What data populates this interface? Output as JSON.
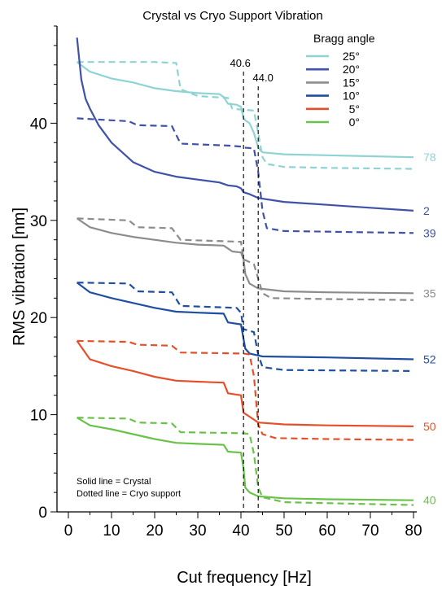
{
  "chart_data": {
    "type": "line",
    "title": "Crystal vs Cryo Support Vibration",
    "xlabel": "Cut frequency [Hz]",
    "ylabel": "RMS vibration [nm]",
    "xlim": [
      0,
      80
    ],
    "ylim": [
      0,
      50
    ],
    "x_ticks": [
      0,
      10,
      20,
      30,
      40,
      50,
      60,
      70,
      80
    ],
    "y_ticks": [
      0,
      10,
      20,
      30,
      40
    ],
    "grid": false,
    "legend": {
      "title": "Bragg angle",
      "placement": "top-right",
      "entries": [
        "25°",
        "20°",
        "15°",
        "10°",
        "5°",
        "0°"
      ]
    },
    "annotations": {
      "notes": [
        "Solid line = Crystal",
        "Dotted line = Cryo support"
      ],
      "vertical_lines": [
        {
          "x": 40.6,
          "label": "40.6"
        },
        {
          "x": 44.0,
          "label": "44.0"
        }
      ]
    },
    "series": [
      {
        "name": "25°",
        "color": "#8fd3d3",
        "style": "solid",
        "end_label": "78",
        "points": [
          [
            2,
            46.3
          ],
          [
            5,
            45.3
          ],
          [
            10,
            44.6
          ],
          [
            15,
            44.2
          ],
          [
            20,
            43.6
          ],
          [
            25,
            43.3
          ],
          [
            30,
            43.1
          ],
          [
            35,
            43.0
          ],
          [
            36,
            42.7
          ],
          [
            37,
            42.0
          ],
          [
            39,
            41.9
          ],
          [
            40,
            41.7
          ],
          [
            40.6,
            40.5
          ],
          [
            41,
            40.3
          ],
          [
            42,
            40.0
          ],
          [
            43,
            39.0
          ],
          [
            44,
            37.5
          ],
          [
            45,
            37.0
          ],
          [
            50,
            36.8
          ],
          [
            60,
            36.7
          ],
          [
            70,
            36.6
          ],
          [
            80,
            36.5
          ]
        ]
      },
      {
        "name": "25°",
        "color": "#8fd3d3",
        "style": "dashed",
        "end_label": "",
        "points": [
          [
            2,
            46.3
          ],
          [
            20,
            46.3
          ],
          [
            25,
            46.2
          ],
          [
            26,
            43.5
          ],
          [
            30,
            42.8
          ],
          [
            37,
            42.6
          ],
          [
            38,
            41.5
          ],
          [
            40,
            41.4
          ],
          [
            40.6,
            41.4
          ],
          [
            43,
            41.3
          ],
          [
            44,
            39.0
          ],
          [
            45,
            36.5
          ],
          [
            46,
            35.8
          ],
          [
            50,
            35.5
          ],
          [
            60,
            35.4
          ],
          [
            80,
            35.3
          ]
        ]
      },
      {
        "name": "20°",
        "color": "#3f51a8",
        "style": "solid",
        "end_label": "2",
        "points": [
          [
            2,
            48.8
          ],
          [
            3,
            44.5
          ],
          [
            4,
            42.5
          ],
          [
            5,
            41.5
          ],
          [
            7,
            39.8
          ],
          [
            10,
            38.0
          ],
          [
            15,
            36.0
          ],
          [
            20,
            35.0
          ],
          [
            25,
            34.5
          ],
          [
            30,
            34.2
          ],
          [
            35,
            33.9
          ],
          [
            37,
            33.6
          ],
          [
            39,
            33.5
          ],
          [
            40,
            33.3
          ],
          [
            40.6,
            32.9
          ],
          [
            42,
            32.7
          ],
          [
            44,
            32.3
          ],
          [
            50,
            31.9
          ],
          [
            60,
            31.6
          ],
          [
            70,
            31.3
          ],
          [
            80,
            31.0
          ]
        ]
      },
      {
        "name": "20°",
        "color": "#3f51a8",
        "style": "dashed",
        "end_label": "39",
        "points": [
          [
            2,
            40.5
          ],
          [
            10,
            40.3
          ],
          [
            14,
            40.2
          ],
          [
            16,
            39.8
          ],
          [
            24,
            39.7
          ],
          [
            26,
            37.9
          ],
          [
            37,
            37.7
          ],
          [
            40,
            37.6
          ],
          [
            40.6,
            37.5
          ],
          [
            43,
            37.4
          ],
          [
            44,
            35.0
          ],
          [
            45,
            31.0
          ],
          [
            46,
            29.2
          ],
          [
            50,
            28.9
          ],
          [
            80,
            28.7
          ]
        ]
      },
      {
        "name": "15°",
        "color": "#8c8c8c",
        "style": "solid",
        "end_label": "35",
        "points": [
          [
            2,
            30.2
          ],
          [
            5,
            29.3
          ],
          [
            10,
            28.7
          ],
          [
            15,
            28.3
          ],
          [
            20,
            28.0
          ],
          [
            25,
            27.7
          ],
          [
            30,
            27.5
          ],
          [
            36,
            27.4
          ],
          [
            38,
            26.8
          ],
          [
            40,
            26.7
          ],
          [
            40.6,
            26.0
          ],
          [
            41,
            24.5
          ],
          [
            42,
            23.5
          ],
          [
            44,
            23.0
          ],
          [
            50,
            22.7
          ],
          [
            60,
            22.6
          ],
          [
            80,
            22.5
          ]
        ]
      },
      {
        "name": "15°",
        "color": "#8c8c8c",
        "style": "dashed",
        "end_label": "",
        "points": [
          [
            2,
            30.2
          ],
          [
            14,
            30.0
          ],
          [
            16,
            29.3
          ],
          [
            24,
            29.2
          ],
          [
            26,
            28.0
          ],
          [
            40,
            27.8
          ],
          [
            40.6,
            26.0
          ],
          [
            43,
            25.5
          ],
          [
            44,
            24.0
          ],
          [
            45,
            22.5
          ],
          [
            47,
            22.0
          ],
          [
            60,
            21.9
          ],
          [
            80,
            21.8
          ]
        ]
      },
      {
        "name": "10°",
        "color": "#1e4fa0",
        "style": "solid",
        "end_label": "52",
        "points": [
          [
            2,
            23.6
          ],
          [
            5,
            22.6
          ],
          [
            10,
            22.0
          ],
          [
            15,
            21.5
          ],
          [
            20,
            21.0
          ],
          [
            25,
            20.6
          ],
          [
            30,
            20.5
          ],
          [
            36,
            20.4
          ],
          [
            37,
            19.5
          ],
          [
            40,
            19.3
          ],
          [
            40.6,
            17.8
          ],
          [
            41,
            16.8
          ],
          [
            42,
            16.3
          ],
          [
            45,
            16.0
          ],
          [
            60,
            15.9
          ],
          [
            80,
            15.7
          ]
        ]
      },
      {
        "name": "10°",
        "color": "#1e4fa0",
        "style": "dashed",
        "end_label": "",
        "points": [
          [
            2,
            23.6
          ],
          [
            14,
            23.5
          ],
          [
            16,
            22.7
          ],
          [
            24,
            22.6
          ],
          [
            26,
            21.2
          ],
          [
            39,
            21.0
          ],
          [
            40,
            20.5
          ],
          [
            40.6,
            18.8
          ],
          [
            43,
            18.5
          ],
          [
            44,
            16.2
          ],
          [
            45,
            14.9
          ],
          [
            50,
            14.6
          ],
          [
            80,
            14.5
          ]
        ]
      },
      {
        "name": "5°",
        "color": "#e5502a",
        "style": "solid",
        "end_label": "50",
        "points": [
          [
            2,
            17.6
          ],
          [
            5,
            15.7
          ],
          [
            10,
            15.0
          ],
          [
            15,
            14.5
          ],
          [
            20,
            13.9
          ],
          [
            25,
            13.5
          ],
          [
            30,
            13.4
          ],
          [
            36,
            13.3
          ],
          [
            37,
            12.2
          ],
          [
            40,
            12.0
          ],
          [
            40.6,
            10.2
          ],
          [
            42,
            9.8
          ],
          [
            44,
            9.2
          ],
          [
            50,
            9.0
          ],
          [
            60,
            8.9
          ],
          [
            80,
            8.8
          ]
        ]
      },
      {
        "name": "5°",
        "color": "#e5502a",
        "style": "dashed",
        "end_label": "",
        "points": [
          [
            2,
            17.6
          ],
          [
            14,
            17.5
          ],
          [
            16,
            17.2
          ],
          [
            24,
            17.1
          ],
          [
            26,
            16.4
          ],
          [
            40,
            16.3
          ],
          [
            40.6,
            16.3
          ],
          [
            42,
            16.2
          ],
          [
            43,
            14.0
          ],
          [
            44,
            9.0
          ],
          [
            45,
            8.0
          ],
          [
            48,
            7.6
          ],
          [
            60,
            7.5
          ],
          [
            80,
            7.4
          ]
        ]
      },
      {
        "name": "0°",
        "color": "#6ac24a",
        "style": "solid",
        "end_label": "40",
        "points": [
          [
            2,
            9.7
          ],
          [
            5,
            8.9
          ],
          [
            10,
            8.5
          ],
          [
            15,
            8.0
          ],
          [
            20,
            7.5
          ],
          [
            25,
            7.1
          ],
          [
            30,
            7.0
          ],
          [
            36,
            6.9
          ],
          [
            37,
            6.2
          ],
          [
            40,
            6.1
          ],
          [
            40.6,
            4.5
          ],
          [
            41,
            2.5
          ],
          [
            42,
            2.0
          ],
          [
            44,
            1.6
          ],
          [
            50,
            1.4
          ],
          [
            60,
            1.3
          ],
          [
            80,
            1.2
          ]
        ]
      },
      {
        "name": "0°",
        "color": "#6ac24a",
        "style": "dashed",
        "end_label": "",
        "points": [
          [
            2,
            9.7
          ],
          [
            14,
            9.6
          ],
          [
            16,
            9.2
          ],
          [
            24,
            9.1
          ],
          [
            26,
            8.2
          ],
          [
            40,
            8.1
          ],
          [
            40.6,
            8.1
          ],
          [
            42,
            8.0
          ],
          [
            43,
            6.0
          ],
          [
            44,
            2.5
          ],
          [
            45,
            1.5
          ],
          [
            50,
            1.0
          ],
          [
            80,
            0.7
          ]
        ]
      }
    ]
  }
}
